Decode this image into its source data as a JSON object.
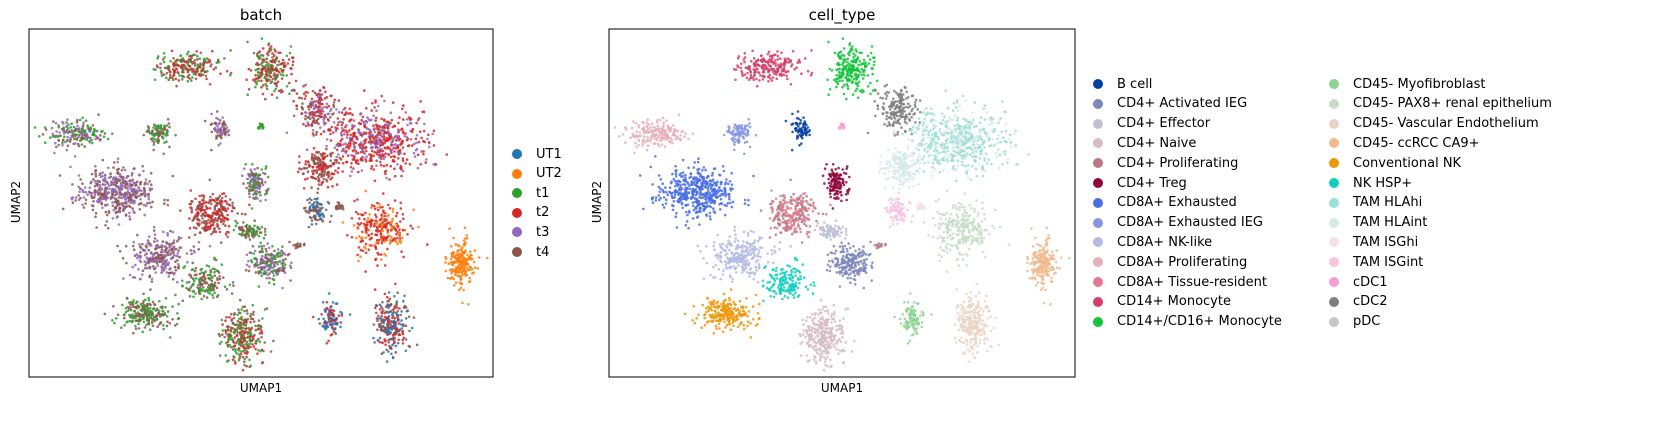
{
  "chart_data": [
    {
      "type": "scatter",
      "title": "batch",
      "xlabel": "UMAP1",
      "ylabel": "UMAP2",
      "grid": false,
      "legend_position": "right",
      "series": [
        {
          "name": "UT1",
          "color": "#1f77b4"
        },
        {
          "name": "UT2",
          "color": "#ff7f0e"
        },
        {
          "name": "t1",
          "color": "#2ca02c"
        },
        {
          "name": "t2",
          "color": "#d62728"
        },
        {
          "name": "t3",
          "color": "#9467bd"
        },
        {
          "name": "t4",
          "color": "#8c564b"
        }
      ],
      "clusters": [
        {
          "cx": 0.34,
          "cy": 0.89,
          "rx": 0.07,
          "ry": 0.04,
          "colors": [
            "#8c564b",
            "#d62728",
            "#2ca02c"
          ],
          "n": 220
        },
        {
          "cx": 0.52,
          "cy": 0.88,
          "rx": 0.045,
          "ry": 0.07,
          "colors": [
            "#8c564b",
            "#2ca02c",
            "#d62728"
          ],
          "n": 220
        },
        {
          "cx": 0.1,
          "cy": 0.7,
          "rx": 0.06,
          "ry": 0.04,
          "colors": [
            "#2ca02c",
            "#9467bd",
            "#8c564b"
          ],
          "n": 180
        },
        {
          "cx": 0.28,
          "cy": 0.7,
          "rx": 0.025,
          "ry": 0.04,
          "colors": [
            "#2ca02c",
            "#8c564b"
          ],
          "n": 90
        },
        {
          "cx": 0.41,
          "cy": 0.71,
          "rx": 0.025,
          "ry": 0.035,
          "colors": [
            "#8c564b",
            "#9467bd"
          ],
          "n": 70
        },
        {
          "cx": 0.5,
          "cy": 0.72,
          "rx": 0.008,
          "ry": 0.015,
          "colors": [
            "#2ca02c"
          ],
          "n": 15
        },
        {
          "cx": 0.62,
          "cy": 0.77,
          "rx": 0.04,
          "ry": 0.06,
          "colors": [
            "#8c564b",
            "#9467bd",
            "#d62728"
          ],
          "n": 180
        },
        {
          "cx": 0.75,
          "cy": 0.68,
          "rx": 0.11,
          "ry": 0.09,
          "colors": [
            "#d62728",
            "#d62728",
            "#9467bd"
          ],
          "n": 560
        },
        {
          "cx": 0.63,
          "cy": 0.6,
          "rx": 0.04,
          "ry": 0.05,
          "colors": [
            "#d62728",
            "#8c564b"
          ],
          "n": 160
        },
        {
          "cx": 0.19,
          "cy": 0.53,
          "rx": 0.08,
          "ry": 0.07,
          "colors": [
            "#9467bd",
            "#8c564b"
          ],
          "n": 460
        },
        {
          "cx": 0.49,
          "cy": 0.56,
          "rx": 0.025,
          "ry": 0.05,
          "colors": [
            "#9467bd",
            "#8c564b",
            "#2ca02c"
          ],
          "n": 120
        },
        {
          "cx": 0.39,
          "cy": 0.47,
          "rx": 0.05,
          "ry": 0.06,
          "colors": [
            "#d62728",
            "#8c564b"
          ],
          "n": 260
        },
        {
          "cx": 0.62,
          "cy": 0.48,
          "rx": 0.025,
          "ry": 0.035,
          "colors": [
            "#1f77b4",
            "#8c564b"
          ],
          "n": 90
        },
        {
          "cx": 0.67,
          "cy": 0.49,
          "rx": 0.012,
          "ry": 0.012,
          "colors": [
            "#8c564b"
          ],
          "n": 20
        },
        {
          "cx": 0.48,
          "cy": 0.42,
          "rx": 0.035,
          "ry": 0.025,
          "colors": [
            "#8c564b",
            "#2ca02c"
          ],
          "n": 80
        },
        {
          "cx": 0.76,
          "cy": 0.42,
          "rx": 0.055,
          "ry": 0.08,
          "colors": [
            "#d62728",
            "#d62728",
            "#ff7f0e"
          ],
          "n": 260
        },
        {
          "cx": 0.28,
          "cy": 0.35,
          "rx": 0.06,
          "ry": 0.06,
          "colors": [
            "#9467bd",
            "#8c564b"
          ],
          "n": 260
        },
        {
          "cx": 0.52,
          "cy": 0.33,
          "rx": 0.045,
          "ry": 0.05,
          "colors": [
            "#2ca02c",
            "#8c564b",
            "#9467bd"
          ],
          "n": 200
        },
        {
          "cx": 0.38,
          "cy": 0.27,
          "rx": 0.045,
          "ry": 0.05,
          "colors": [
            "#2ca02c",
            "#8c564b"
          ],
          "n": 150
        },
        {
          "cx": 0.58,
          "cy": 0.38,
          "rx": 0.015,
          "ry": 0.008,
          "colors": [
            "#8c564b"
          ],
          "n": 15
        },
        {
          "cx": 0.93,
          "cy": 0.33,
          "rx": 0.03,
          "ry": 0.06,
          "colors": [
            "#ff7f0e"
          ],
          "n": 200
        },
        {
          "cx": 0.25,
          "cy": 0.18,
          "rx": 0.06,
          "ry": 0.045,
          "colors": [
            "#8c564b",
            "#2ca02c"
          ],
          "n": 220
        },
        {
          "cx": 0.46,
          "cy": 0.12,
          "rx": 0.045,
          "ry": 0.08,
          "colors": [
            "#8c564b",
            "#2ca02c",
            "#d62728"
          ],
          "n": 280
        },
        {
          "cx": 0.65,
          "cy": 0.17,
          "rx": 0.02,
          "ry": 0.05,
          "colors": [
            "#d62728",
            "#1f77b4"
          ],
          "n": 100
        },
        {
          "cx": 0.78,
          "cy": 0.15,
          "rx": 0.035,
          "ry": 0.08,
          "colors": [
            "#d62728",
            "#8c564b",
            "#1f77b4"
          ],
          "n": 240
        }
      ]
    },
    {
      "type": "scatter",
      "title": "cell_type",
      "xlabel": "UMAP1",
      "ylabel": "UMAP2",
      "grid": false,
      "legend_position": "right",
      "series": [
        {
          "name": "B cell",
          "color": "#023fa5"
        },
        {
          "name": "CD4+ Activated IEG",
          "color": "#7d87b9"
        },
        {
          "name": "CD4+ Effector",
          "color": "#bec1d4"
        },
        {
          "name": "CD4+ Naive",
          "color": "#d6bcc0"
        },
        {
          "name": "CD4+ Proliferating",
          "color": "#bb7784"
        },
        {
          "name": "CD4+ Treg",
          "color": "#8e063b"
        },
        {
          "name": "CD8A+ Exhausted",
          "color": "#4a6fe3"
        },
        {
          "name": "CD8A+ Exhausted IEG",
          "color": "#8595e1"
        },
        {
          "name": "CD8A+ NK-like",
          "color": "#b5bbe3"
        },
        {
          "name": "CD8A+ Proliferating",
          "color": "#e6afb9"
        },
        {
          "name": "CD8A+ Tissue-resident",
          "color": "#e07b91"
        },
        {
          "name": "CD14+ Monocyte",
          "color": "#d33f6a"
        },
        {
          "name": "CD14+/CD16+ Monocyte",
          "color": "#11c638"
        },
        {
          "name": "CD45- Myofibroblast",
          "color": "#8dd593"
        },
        {
          "name": "CD45- PAX8+ renal epithelium",
          "color": "#c6dec7"
        },
        {
          "name": "CD45- Vascular Endothelium",
          "color": "#ead3c6"
        },
        {
          "name": "CD45- ccRCC CA9+",
          "color": "#f0b98d"
        },
        {
          "name": "Conventional NK",
          "color": "#ef9708"
        },
        {
          "name": "NK HSP+",
          "color": "#0fcfc0"
        },
        {
          "name": "TAM HLAhi",
          "color": "#9cded6"
        },
        {
          "name": "TAM HLAint",
          "color": "#d5eae7"
        },
        {
          "name": "TAM ISGhi",
          "color": "#f3e1eb"
        },
        {
          "name": "TAM ISGint",
          "color": "#f6c4e1"
        },
        {
          "name": "cDC1",
          "color": "#f79cd4"
        },
        {
          "name": "cDC2",
          "color": "#7f7f7f"
        },
        {
          "name": "pDC",
          "color": "#c7c7c7"
        }
      ],
      "clusters": [
        {
          "cx": 0.34,
          "cy": 0.89,
          "rx": 0.07,
          "ry": 0.04,
          "colors": [
            "#d33f6a"
          ],
          "n": 220
        },
        {
          "cx": 0.52,
          "cy": 0.88,
          "rx": 0.045,
          "ry": 0.07,
          "colors": [
            "#11c638"
          ],
          "n": 220
        },
        {
          "cx": 0.1,
          "cy": 0.7,
          "rx": 0.06,
          "ry": 0.04,
          "colors": [
            "#e6afb9"
          ],
          "n": 180
        },
        {
          "cx": 0.28,
          "cy": 0.7,
          "rx": 0.025,
          "ry": 0.04,
          "colors": [
            "#8595e1"
          ],
          "n": 90
        },
        {
          "cx": 0.41,
          "cy": 0.71,
          "rx": 0.025,
          "ry": 0.035,
          "colors": [
            "#023fa5"
          ],
          "n": 70
        },
        {
          "cx": 0.5,
          "cy": 0.72,
          "rx": 0.008,
          "ry": 0.015,
          "colors": [
            "#f79cd4"
          ],
          "n": 15
        },
        {
          "cx": 0.62,
          "cy": 0.77,
          "rx": 0.04,
          "ry": 0.06,
          "colors": [
            "#7f7f7f"
          ],
          "n": 180
        },
        {
          "cx": 0.75,
          "cy": 0.68,
          "rx": 0.11,
          "ry": 0.09,
          "colors": [
            "#9cded6",
            "#9cded6",
            "#d5eae7"
          ],
          "n": 560
        },
        {
          "cx": 0.63,
          "cy": 0.6,
          "rx": 0.04,
          "ry": 0.05,
          "colors": [
            "#d5eae7"
          ],
          "n": 160
        },
        {
          "cx": 0.19,
          "cy": 0.53,
          "rx": 0.08,
          "ry": 0.07,
          "colors": [
            "#4a6fe3"
          ],
          "n": 460
        },
        {
          "cx": 0.49,
          "cy": 0.56,
          "rx": 0.025,
          "ry": 0.05,
          "colors": [
            "#8e063b"
          ],
          "n": 120
        },
        {
          "cx": 0.39,
          "cy": 0.47,
          "rx": 0.05,
          "ry": 0.06,
          "colors": [
            "#e07b91",
            "#bb7784"
          ],
          "n": 260
        },
        {
          "cx": 0.62,
          "cy": 0.48,
          "rx": 0.025,
          "ry": 0.035,
          "colors": [
            "#f6c4e1"
          ],
          "n": 90
        },
        {
          "cx": 0.67,
          "cy": 0.49,
          "rx": 0.012,
          "ry": 0.012,
          "colors": [
            "#f3e1eb"
          ],
          "n": 20
        },
        {
          "cx": 0.48,
          "cy": 0.42,
          "rx": 0.035,
          "ry": 0.025,
          "colors": [
            "#bec1d4"
          ],
          "n": 80
        },
        {
          "cx": 0.76,
          "cy": 0.42,
          "rx": 0.055,
          "ry": 0.08,
          "colors": [
            "#c6dec7"
          ],
          "n": 260
        },
        {
          "cx": 0.28,
          "cy": 0.35,
          "rx": 0.06,
          "ry": 0.06,
          "colors": [
            "#b5bbe3"
          ],
          "n": 260
        },
        {
          "cx": 0.52,
          "cy": 0.33,
          "rx": 0.045,
          "ry": 0.05,
          "colors": [
            "#7d87b9"
          ],
          "n": 200
        },
        {
          "cx": 0.38,
          "cy": 0.27,
          "rx": 0.045,
          "ry": 0.05,
          "colors": [
            "#0fcfc0"
          ],
          "n": 150
        },
        {
          "cx": 0.58,
          "cy": 0.38,
          "rx": 0.015,
          "ry": 0.008,
          "colors": [
            "#bb7784"
          ],
          "n": 15
        },
        {
          "cx": 0.93,
          "cy": 0.33,
          "rx": 0.03,
          "ry": 0.06,
          "colors": [
            "#f0b98d"
          ],
          "n": 200
        },
        {
          "cx": 0.25,
          "cy": 0.18,
          "rx": 0.06,
          "ry": 0.045,
          "colors": [
            "#ef9708"
          ],
          "n": 220
        },
        {
          "cx": 0.46,
          "cy": 0.12,
          "rx": 0.045,
          "ry": 0.08,
          "colors": [
            "#d6bcc0"
          ],
          "n": 280
        },
        {
          "cx": 0.65,
          "cy": 0.17,
          "rx": 0.02,
          "ry": 0.05,
          "colors": [
            "#8dd593"
          ],
          "n": 100
        },
        {
          "cx": 0.78,
          "cy": 0.15,
          "rx": 0.035,
          "ry": 0.08,
          "colors": [
            "#ead3c6"
          ],
          "n": 240
        }
      ]
    }
  ]
}
